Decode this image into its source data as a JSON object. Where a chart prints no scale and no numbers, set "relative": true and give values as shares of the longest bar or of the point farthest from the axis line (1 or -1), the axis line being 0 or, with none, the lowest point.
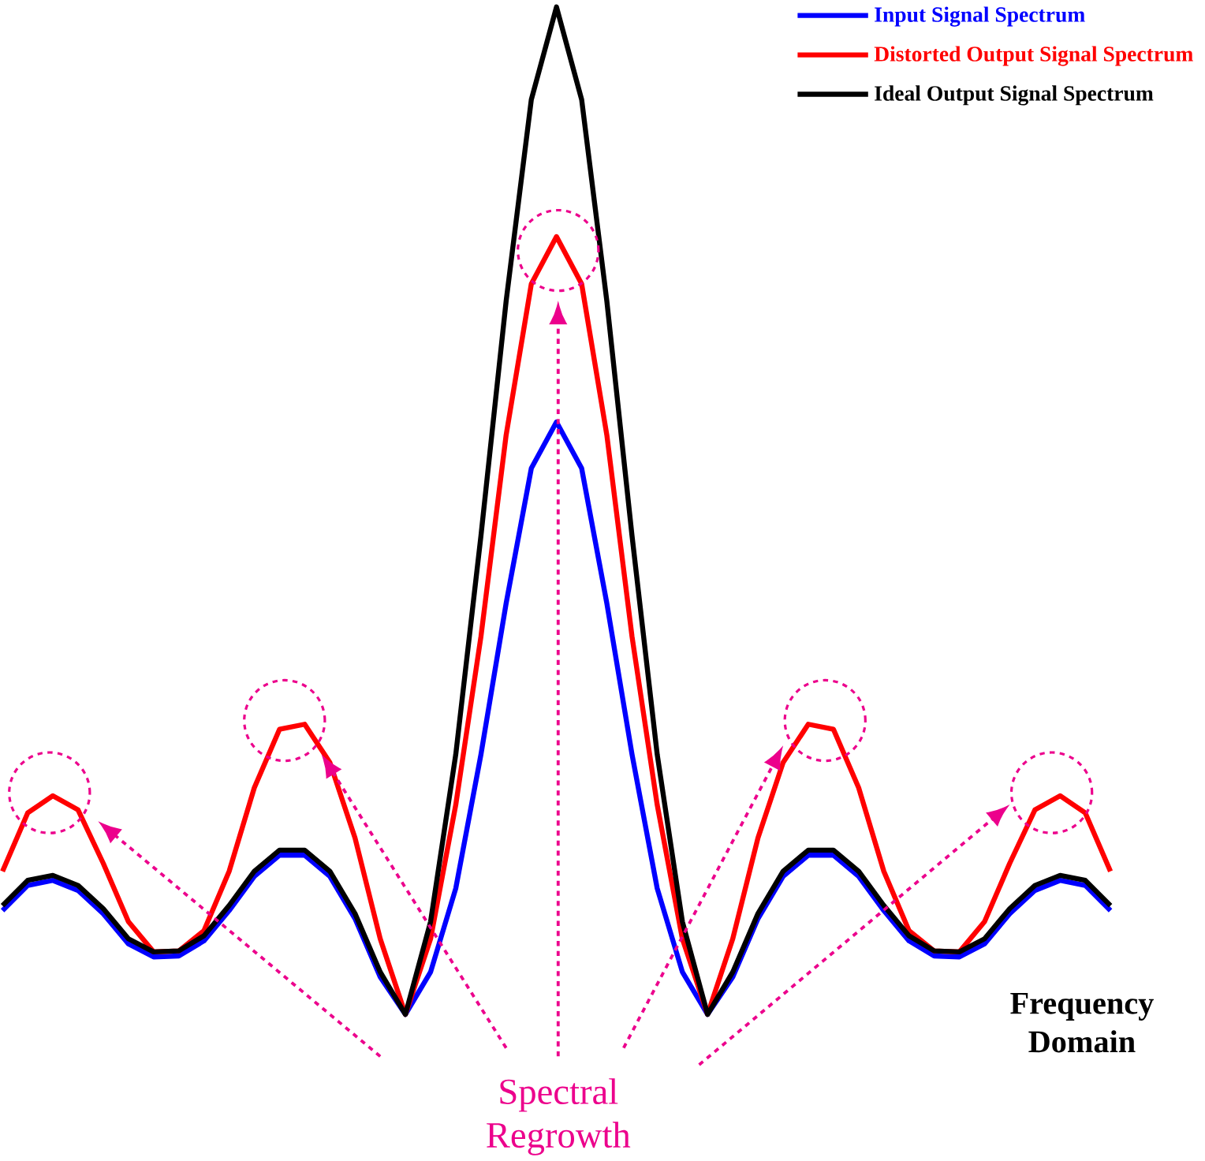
{
  "chart_data": {
    "type": "line",
    "relative": true,
    "legend": "top right",
    "categories": [
      null,
      null,
      null,
      null,
      null,
      null,
      null,
      null,
      null,
      null,
      null,
      null,
      null,
      null,
      null,
      null,
      null,
      null,
      null,
      null,
      null,
      null,
      null,
      null,
      null,
      null,
      null,
      null,
      null,
      null,
      null,
      null,
      null,
      null,
      null,
      null,
      null,
      null,
      null,
      null,
      null,
      null,
      null,
      null,
      null
    ],
    "series": [
      {
        "name": "Input Signal Spectrum",
        "color": "#0000ff",
        "values": [
          0.103,
          0.128,
          0.133,
          0.123,
          0.1,
          0.07,
          0.057,
          0.058,
          0.073,
          0.103,
          0.137,
          0.158,
          0.158,
          0.137,
          0.095,
          0.037,
          0,
          0.042,
          0.125,
          0.258,
          0.408,
          0.542,
          0.588,
          0.542,
          0.408,
          0.258,
          0.125,
          0.042,
          0,
          0.037,
          0.095,
          0.137,
          0.158,
          0.158,
          0.137,
          0.103,
          0.073,
          0.058,
          0.057,
          0.07,
          0.1,
          0.123,
          0.133,
          0.128,
          0.103
        ]
      },
      {
        "name": "Distorted Output Signal Spectrum",
        "color": "#ff0000",
        "values": [
          0.142,
          0.2,
          0.217,
          0.203,
          0.15,
          0.092,
          0.062,
          0.063,
          0.083,
          0.142,
          0.225,
          0.283,
          0.288,
          0.25,
          0.175,
          0.075,
          0,
          0.075,
          0.208,
          0.375,
          0.575,
          0.725,
          0.772,
          0.725,
          0.575,
          0.375,
          0.208,
          0.075,
          0,
          0.075,
          0.175,
          0.25,
          0.288,
          0.283,
          0.225,
          0.142,
          0.083,
          0.063,
          0.062,
          0.092,
          0.15,
          0.203,
          0.217,
          0.2,
          0.142
        ]
      },
      {
        "name": "Ideal Output Signal Spectrum",
        "color": "#000000",
        "values": [
          0.108,
          0.133,
          0.138,
          0.128,
          0.105,
          0.075,
          0.062,
          0.063,
          0.078,
          0.108,
          0.142,
          0.163,
          0.163,
          0.142,
          0.1,
          0.042,
          0,
          0.092,
          0.258,
          0.475,
          0.708,
          0.908,
          1.0,
          0.908,
          0.708,
          0.475,
          0.258,
          0.092,
          0,
          0.042,
          0.1,
          0.142,
          0.163,
          0.163,
          0.142,
          0.108,
          0.078,
          0.063,
          0.062,
          0.075,
          0.105,
          0.128,
          0.138,
          0.133,
          0.108
        ]
      }
    ],
    "annotations": [
      "Spectral Regrowth",
      "Frequency Domain"
    ]
  }
}
